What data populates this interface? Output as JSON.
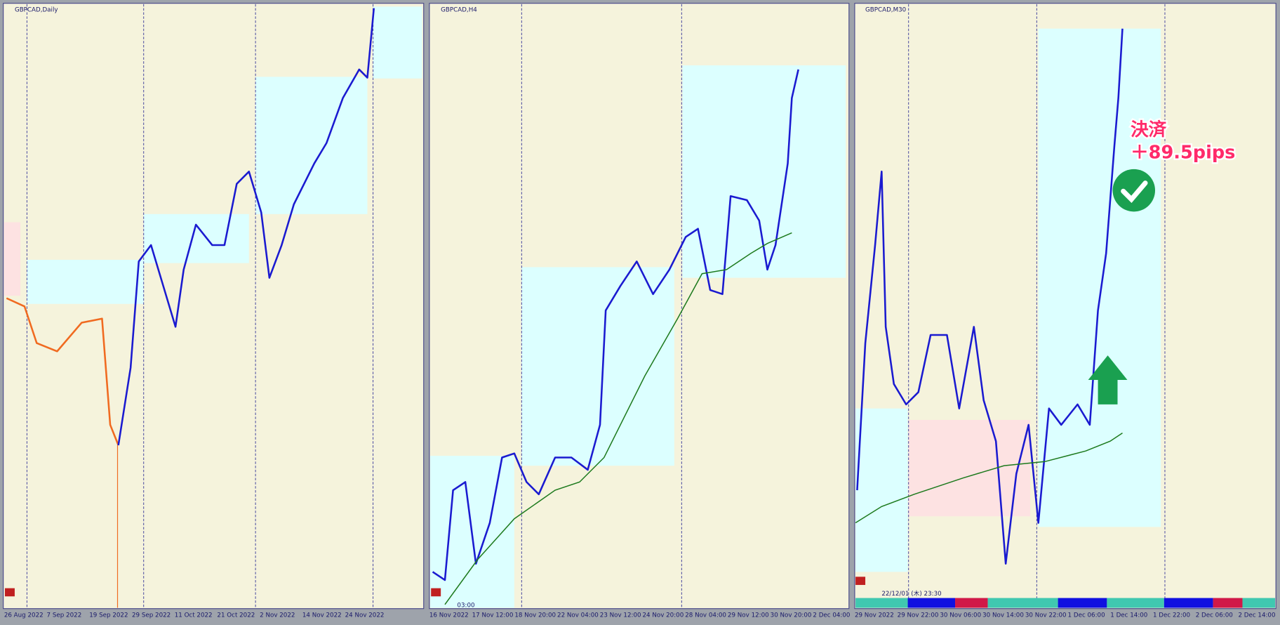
{
  "panels": [
    {
      "title": "GBPCAD,Daily",
      "dates": [
        "26 Aug 2022",
        "7 Sep 2022",
        "19 Sep 2022",
        "29 Sep 2022",
        "11 Oct 2022",
        "21 Oct 2022",
        "2 Nov 2022",
        "14 Nov 2022",
        "24 Nov 2022"
      ]
    },
    {
      "title": "GBPCAD,H4",
      "dates": [
        "16 Nov 2022",
        "17 Nov 12:00",
        "18 Nov 20:00",
        "22 Nov 04:00",
        "23 Nov 12:00",
        "24 Nov 20:00",
        "28 Nov 04:00",
        "29 Nov 12:00",
        "30 Nov 20:00",
        "2 Dec 04:00"
      ],
      "time_label": "03:00"
    },
    {
      "title": "GBPCAD,M30",
      "dates": [
        "29 Nov 2022",
        "29 Nov 22:00",
        "30 Nov 06:00",
        "30 Nov 14:00",
        "30 Nov 22:00",
        "1 Dec 06:00",
        "1 Dec 14:00",
        "1 Dec 22:00",
        "2 Dec 06:00",
        "2 Dec 14:00"
      ],
      "time_label": "22/12/01 (木) 23:30",
      "annotation": {
        "line1": "決済",
        "line2": "＋89.5pips"
      }
    }
  ]
}
